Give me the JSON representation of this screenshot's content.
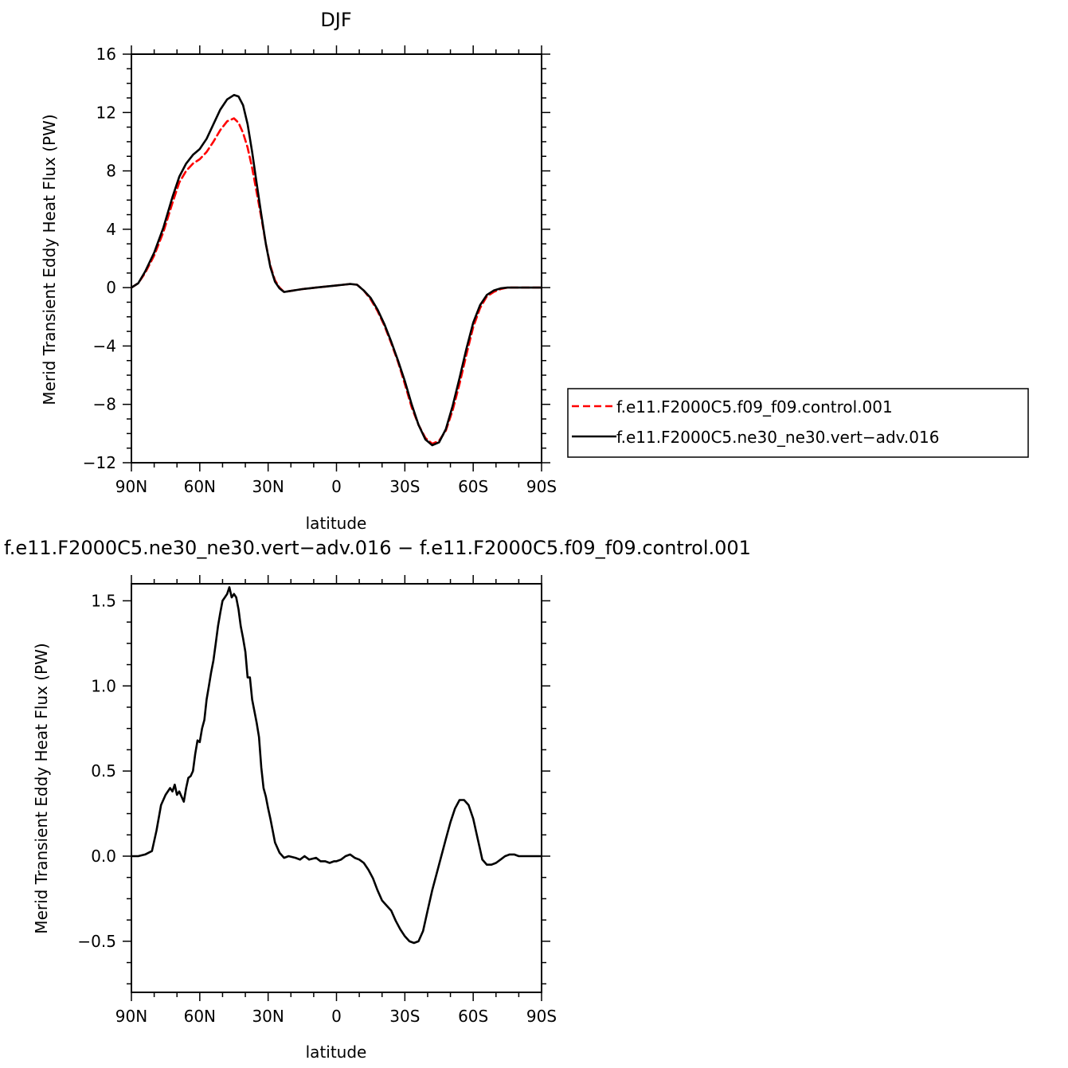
{
  "chart_data": [
    {
      "type": "line",
      "title": "DJF",
      "xlabel": "latitude",
      "ylabel": "Merid Transient Eddy Heat Flux (PW)",
      "xlim": [
        90,
        -90
      ],
      "ylim": [
        -12,
        16
      ],
      "x_ticks": [
        {
          "value": 90,
          "label": "90N"
        },
        {
          "value": 60,
          "label": "60N"
        },
        {
          "value": 30,
          "label": "30N"
        },
        {
          "value": 0,
          "label": "0"
        },
        {
          "value": -30,
          "label": "30S"
        },
        {
          "value": -60,
          "label": "60S"
        },
        {
          "value": -90,
          "label": "90S"
        }
      ],
      "y_ticks": [
        {
          "value": 16,
          "label": "16"
        },
        {
          "value": 12,
          "label": "12"
        },
        {
          "value": 8,
          "label": "8"
        },
        {
          "value": 4,
          "label": "4"
        },
        {
          "value": 0,
          "label": "0"
        },
        {
          "value": -4,
          "label": "−4"
        },
        {
          "value": -8,
          "label": "−8"
        },
        {
          "value": -12,
          "label": "−12"
        }
      ],
      "legend_position": "right",
      "series": [
        {
          "name": "f.e11.F2000C5.f09_f09.control.001",
          "color": "#ff0000",
          "dash": "dashed",
          "x": [
            90,
            87,
            84,
            80,
            76,
            72,
            69,
            66,
            63,
            60,
            57,
            54,
            51,
            48,
            45,
            43,
            41,
            39,
            37,
            35,
            33,
            31,
            29,
            27,
            25,
            23,
            21,
            19,
            17,
            15,
            12,
            9,
            6,
            3,
            0,
            -3,
            -6,
            -9,
            -12,
            -15,
            -18,
            -21,
            -24,
            -27,
            -30,
            -33,
            -36,
            -39,
            -42,
            -45,
            -48,
            -51,
            -54,
            -57,
            -60,
            -63,
            -66,
            -69,
            -72,
            -75,
            -78,
            -81,
            -84,
            -87,
            -90
          ],
          "y": [
            0,
            0.3,
            1.0,
            2.2,
            3.8,
            5.8,
            7.2,
            8.0,
            8.5,
            8.8,
            9.3,
            10.0,
            10.8,
            11.4,
            11.6,
            11.3,
            10.6,
            9.6,
            8.2,
            6.5,
            4.8,
            3.0,
            1.5,
            0.5,
            0.0,
            -0.3,
            -0.25,
            -0.2,
            -0.15,
            -0.1,
            -0.05,
            0.0,
            0.05,
            0.1,
            0.15,
            0.2,
            0.25,
            0.2,
            -0.2,
            -0.8,
            -1.6,
            -2.6,
            -3.8,
            -5.1,
            -6.6,
            -8.2,
            -9.4,
            -10.3,
            -10.7,
            -10.5,
            -9.8,
            -8.4,
            -6.6,
            -4.6,
            -2.7,
            -1.4,
            -0.6,
            -0.3,
            -0.1,
            0,
            0,
            0,
            0,
            0,
            0
          ]
        },
        {
          "name": "f.e11.F2000C5.ne30_ne30.vert−adv.016",
          "color": "#000000",
          "dash": "solid",
          "x": [
            90,
            87,
            84,
            80,
            76,
            72,
            69,
            66,
            63,
            60,
            57,
            54,
            51,
            48,
            45,
            43,
            41,
            39,
            37,
            35,
            33,
            31,
            29,
            27,
            25,
            23,
            21,
            19,
            17,
            15,
            12,
            9,
            6,
            3,
            0,
            -3,
            -6,
            -9,
            -12,
            -15,
            -18,
            -21,
            -24,
            -27,
            -30,
            -33,
            -36,
            -39,
            -42,
            -45,
            -48,
            -51,
            -54,
            -57,
            -60,
            -63,
            -66,
            -69,
            -72,
            -75,
            -78,
            -81,
            -84,
            -87,
            -90
          ],
          "y": [
            0,
            0.3,
            1.1,
            2.4,
            4.1,
            6.2,
            7.6,
            8.5,
            9.1,
            9.5,
            10.2,
            11.2,
            12.2,
            12.9,
            13.2,
            13.1,
            12.5,
            11.2,
            9.3,
            7.1,
            5.0,
            3.0,
            1.4,
            0.4,
            -0.05,
            -0.3,
            -0.25,
            -0.2,
            -0.15,
            -0.1,
            -0.05,
            0.0,
            0.05,
            0.1,
            0.15,
            0.2,
            0.25,
            0.2,
            -0.2,
            -0.7,
            -1.5,
            -2.5,
            -3.7,
            -5.0,
            -6.4,
            -8.0,
            -9.4,
            -10.4,
            -10.8,
            -10.6,
            -9.7,
            -8.1,
            -6.2,
            -4.2,
            -2.4,
            -1.2,
            -0.5,
            -0.2,
            -0.05,
            0,
            0,
            0,
            0,
            0,
            0
          ]
        }
      ]
    },
    {
      "type": "line",
      "title": "f.e11.F2000C5.ne30_ne30.vert−adv.016 − f.e11.F2000C5.f09_f09.control.001",
      "xlabel": "latitude",
      "ylabel": "Merid Transient Eddy Heat Flux (PW)",
      "xlim": [
        90,
        -90
      ],
      "ylim": [
        -0.8,
        1.6
      ],
      "x_ticks": [
        {
          "value": 90,
          "label": "90N"
        },
        {
          "value": 60,
          "label": "60N"
        },
        {
          "value": 30,
          "label": "30N"
        },
        {
          "value": 0,
          "label": "0"
        },
        {
          "value": -30,
          "label": "30S"
        },
        {
          "value": -60,
          "label": "60S"
        },
        {
          "value": -90,
          "label": "90S"
        }
      ],
      "y_ticks": [
        {
          "value": 1.5,
          "label": "1.5"
        },
        {
          "value": 1.0,
          "label": "1.0"
        },
        {
          "value": 0.5,
          "label": "0.5"
        },
        {
          "value": 0.0,
          "label": "0.0"
        },
        {
          "value": -0.5,
          "label": "−0.5"
        }
      ],
      "series": [
        {
          "name": "",
          "color": "#000000",
          "dash": "solid",
          "x": [
            90,
            87,
            84,
            81,
            79,
            77,
            75,
            73,
            72,
            71,
            70,
            69,
            68,
            67,
            66,
            65,
            64,
            63,
            62,
            61,
            60,
            59,
            58,
            57,
            56,
            55,
            54,
            53,
            52,
            51,
            50,
            49,
            48,
            47,
            46,
            45,
            44,
            43,
            42,
            41,
            40,
            39,
            38,
            37,
            36,
            35,
            34,
            33,
            32,
            31,
            30,
            29,
            28,
            27,
            25,
            23,
            21,
            18,
            16,
            14,
            12,
            9,
            7,
            5,
            3,
            1,
            0,
            -2,
            -4,
            -6,
            -8,
            -10,
            -12,
            -14,
            -16,
            -18,
            -20,
            -22,
            -24,
            -26,
            -28,
            -30,
            -32,
            -34,
            -36,
            -38,
            -40,
            -42,
            -44,
            -46,
            -48,
            -50,
            -52,
            -54,
            -56,
            -58,
            -60,
            -62,
            -63,
            -64,
            -66,
            -68,
            -70,
            -72,
            -74,
            -76,
            -78,
            -80,
            -82,
            -84,
            -86,
            -88,
            -90
          ],
          "y": [
            0.0,
            0.0,
            0.01,
            0.03,
            0.15,
            0.3,
            0.36,
            0.4,
            0.38,
            0.42,
            0.36,
            0.38,
            0.35,
            0.32,
            0.4,
            0.46,
            0.47,
            0.5,
            0.6,
            0.68,
            0.67,
            0.75,
            0.8,
            0.92,
            1.0,
            1.08,
            1.15,
            1.25,
            1.35,
            1.43,
            1.5,
            1.52,
            1.54,
            1.58,
            1.52,
            1.54,
            1.52,
            1.45,
            1.35,
            1.28,
            1.2,
            1.05,
            1.05,
            0.92,
            0.85,
            0.78,
            0.7,
            0.52,
            0.4,
            0.35,
            0.28,
            0.22,
            0.15,
            0.08,
            0.02,
            -0.01,
            0.0,
            -0.01,
            -0.02,
            0.0,
            -0.02,
            -0.01,
            -0.03,
            -0.03,
            -0.04,
            -0.03,
            -0.03,
            -0.02,
            0.0,
            0.01,
            -0.01,
            -0.02,
            -0.04,
            -0.08,
            -0.13,
            -0.2,
            -0.26,
            -0.29,
            -0.32,
            -0.38,
            -0.43,
            -0.47,
            -0.5,
            -0.51,
            -0.5,
            -0.44,
            -0.32,
            -0.2,
            -0.1,
            0.0,
            0.1,
            0.2,
            0.28,
            0.33,
            0.33,
            0.3,
            0.22,
            0.1,
            0.04,
            -0.02,
            -0.05,
            -0.05,
            -0.04,
            -0.02,
            0.0,
            0.01,
            0.01,
            0.0,
            0.0,
            0.0,
            0.0,
            0.0,
            0.0
          ]
        }
      ]
    }
  ]
}
